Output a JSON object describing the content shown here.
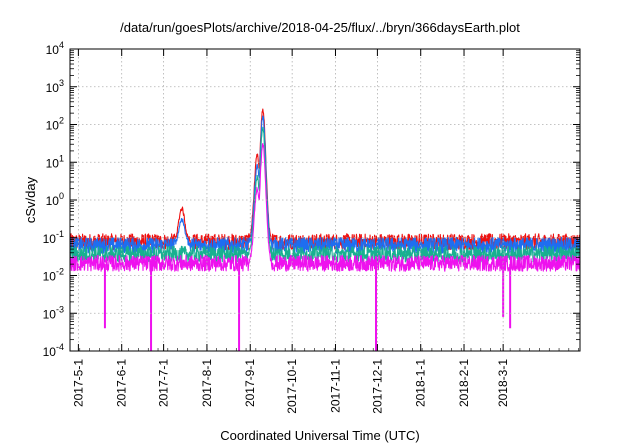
{
  "chart_data": {
    "type": "line",
    "title": "/data/run/goesPlots/archive/2018-04-25/flux/../bryn/366daysEarth.plot",
    "xlabel": "Coordinated Universal Time (UTC)",
    "ylabel": "cSv/day",
    "yscale": "log",
    "ylim": [
      0.0001,
      10000
    ],
    "xlim": [
      "2017-04-25",
      "2018-04-25"
    ],
    "grid": true,
    "y_ticks": [
      {
        "base": "10",
        "exp": "-4"
      },
      {
        "base": "10",
        "exp": "-3"
      },
      {
        "base": "10",
        "exp": "-2"
      },
      {
        "base": "10",
        "exp": "-1"
      },
      {
        "base": "10",
        "exp": "0"
      },
      {
        "base": "10",
        "exp": "1"
      },
      {
        "base": "10",
        "exp": "2"
      },
      {
        "base": "10",
        "exp": "3"
      },
      {
        "base": "10",
        "exp": "4"
      }
    ],
    "x_ticks": [
      {
        "label": "2017-5-1",
        "date": "2017-05-01"
      },
      {
        "label": "2017-6-1",
        "date": "2017-06-01"
      },
      {
        "label": "2017-7-1",
        "date": "2017-07-01"
      },
      {
        "label": "2017-8-1",
        "date": "2017-08-01"
      },
      {
        "label": "2017-9-1",
        "date": "2017-09-01"
      },
      {
        "label": "2017-10-1",
        "date": "2017-10-01"
      },
      {
        "label": "2017-11-1",
        "date": "2017-11-01"
      },
      {
        "label": "2017-12-1",
        "date": "2017-12-01"
      },
      {
        "label": "2018-1-1",
        "date": "2018-01-01"
      },
      {
        "label": "2018-2-1",
        "date": "2018-02-01"
      },
      {
        "label": "2018-3-1",
        "date": "2018-03-01"
      }
    ],
    "series": [
      {
        "color": "#ee1111",
        "baseline": 0.075,
        "peaks": [
          {
            "date": "2017-07-14",
            "value": 0.6
          },
          {
            "date": "2017-09-06",
            "value": 15
          },
          {
            "date": "2017-09-08",
            "value": 8
          },
          {
            "date": "2017-09-10",
            "value": 250
          }
        ]
      },
      {
        "color": "#1e6ef0",
        "baseline": 0.06,
        "peaks": [
          {
            "date": "2017-07-14",
            "value": 0.3
          },
          {
            "date": "2017-09-06",
            "value": 8
          },
          {
            "date": "2017-09-08",
            "value": 4
          },
          {
            "date": "2017-09-10",
            "value": 160
          }
        ]
      },
      {
        "color": "#18b090",
        "baseline": 0.035,
        "peaks": [
          {
            "date": "2017-09-06",
            "value": 4
          },
          {
            "date": "2017-09-10",
            "value": 80
          }
        ]
      },
      {
        "color": "#ee11ee",
        "baseline": 0.02,
        "dips": [
          {
            "date": "2017-05-20",
            "value": 0.0004
          },
          {
            "date": "2017-06-22",
            "value": 0.0001
          },
          {
            "date": "2017-08-24",
            "value": 0.0001
          },
          {
            "date": "2017-11-30",
            "value": 0.0001
          },
          {
            "date": "2018-03-01",
            "value": 0.0008
          },
          {
            "date": "2018-03-06",
            "value": 0.0004
          }
        ],
        "peaks": [
          {
            "date": "2017-09-06",
            "value": 2
          },
          {
            "date": "2017-09-10",
            "value": 30
          }
        ]
      }
    ]
  }
}
